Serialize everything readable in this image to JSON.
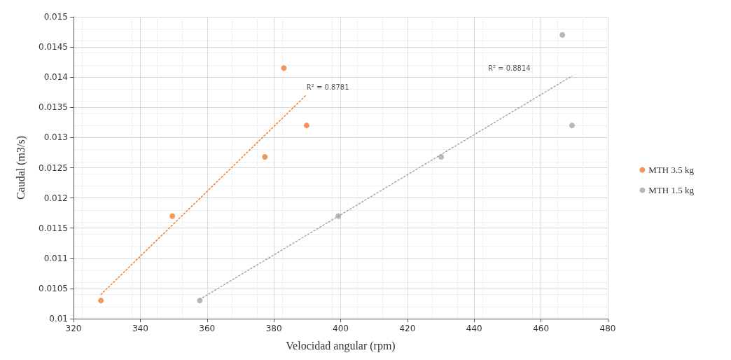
{
  "chart_data": {
    "type": "scatter",
    "xlabel": "Velocidad angular (rpm)",
    "ylabel": "Caudal (m3/s)",
    "xlim": [
      320,
      480
    ],
    "xticks": [
      320,
      340,
      360,
      380,
      400,
      420,
      440,
      460,
      480
    ],
    "ylim": [
      0.01,
      0.015
    ],
    "yticks": [
      0.01,
      0.0105,
      0.011,
      0.0115,
      0.012,
      0.0125,
      0.013,
      0.0135,
      0.014,
      0.0145,
      0.015
    ],
    "grid": true,
    "legend": "right",
    "marker": "circle",
    "series": [
      {
        "name": "MTH 3.5 kg",
        "color": "#ed7d31",
        "x": [
          328.2,
          349.6,
          377.3,
          383.0,
          389.8
        ],
        "values": [
          0.0103,
          0.0117,
          0.01268,
          0.01415,
          0.0132
        ]
      },
      {
        "name": "MTH 1.5 kg",
        "color": "#a5a5a5",
        "x": [
          357.8,
          399.3,
          430.1,
          466.4,
          469.3
        ],
        "values": [
          0.0103,
          0.0117,
          0.01268,
          0.0147,
          0.0132
        ]
      },
      {
        "type": "line",
        "line_style": "dotted",
        "marker": "none",
        "color": "#ed7d31",
        "x": [
          328.2,
          389.8
        ],
        "values": [
          0.0104,
          0.01371
        ]
      },
      {
        "type": "line",
        "line_style": "dotted",
        "marker": "none",
        "color": "#a5a5a5",
        "x": [
          357.8,
          469.3
        ],
        "values": [
          0.01032,
          0.01402
        ]
      }
    ],
    "annotations": [
      "R² = 0.8781",
      "R² = 0.8814"
    ]
  }
}
